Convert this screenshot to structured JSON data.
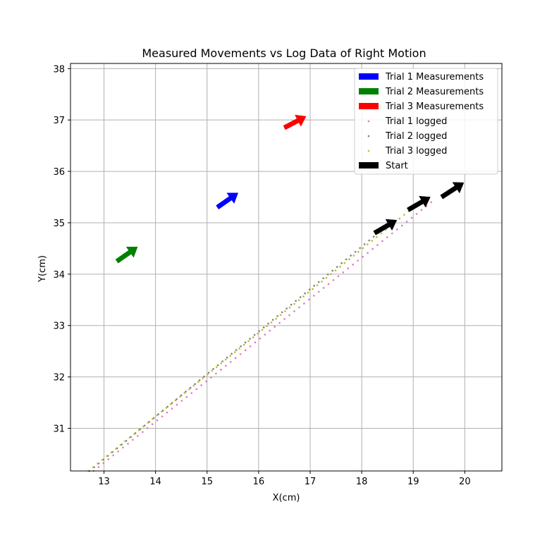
{
  "chart_data": {
    "type": "scatter",
    "title": "Measured Movements vs Log Data of Right Motion",
    "xlabel": "X(cm)",
    "ylabel": "Y(cm)",
    "xlim": [
      12.35,
      20.72
    ],
    "ylim": [
      30.17,
      38.1
    ],
    "xticks": [
      13,
      14,
      15,
      16,
      17,
      18,
      19,
      20
    ],
    "yticks": [
      31,
      32,
      33,
      34,
      35,
      36,
      37,
      38
    ],
    "grid": true,
    "legend_position": "top-right",
    "legend": [
      {
        "label": "Trial 1 Measurements",
        "kind": "patch",
        "color": "#0000ff"
      },
      {
        "label": "Trial 2 Measurements",
        "kind": "patch",
        "color": "#008000"
      },
      {
        "label": "Trial 3 Measurements",
        "kind": "patch",
        "color": "#ff0000"
      },
      {
        "label": "Trial 1 logged",
        "kind": "dot",
        "color": "#e377c2"
      },
      {
        "label": "Trial 2 logged",
        "kind": "dot",
        "color": "#7f7f7f"
      },
      {
        "label": "Trial 3 logged",
        "kind": "dot",
        "color": "#bcbd22"
      },
      {
        "label": "Start",
        "kind": "patch",
        "color": "#000000"
      }
    ],
    "arrows": [
      {
        "series": "Trial 1 Measurements",
        "color": "#0000ff",
        "x": 15.2,
        "y": 35.3,
        "dx": 0.4,
        "dy": 0.28
      },
      {
        "series": "Trial 2 Measurements",
        "color": "#008000",
        "x": 13.25,
        "y": 34.25,
        "dx": 0.4,
        "dy": 0.28
      },
      {
        "series": "Trial 3 Measurements",
        "color": "#ff0000",
        "x": 16.5,
        "y": 36.85,
        "dx": 0.42,
        "dy": 0.22
      },
      {
        "series": "Start",
        "color": "#000000",
        "x": 18.25,
        "y": 34.8,
        "dx": 0.43,
        "dy": 0.25
      },
      {
        "series": "Start",
        "color": "#000000",
        "x": 18.9,
        "y": 35.25,
        "dx": 0.43,
        "dy": 0.25
      },
      {
        "series": "Start",
        "color": "#000000",
        "x": 19.55,
        "y": 35.5,
        "dx": 0.43,
        "dy": 0.28
      }
    ],
    "series": [
      {
        "name": "Trial 1 logged",
        "color": "#e377c2",
        "x_start": 12.8,
        "y_start": 30.17,
        "x_end": 19.35,
        "y_end": 35.4,
        "count": 70
      },
      {
        "name": "Trial 2 logged",
        "color": "#7f7f7f",
        "x_start": 12.72,
        "y_start": 30.17,
        "x_end": 18.5,
        "y_end": 34.95,
        "count": 66
      },
      {
        "name": "Trial 3 logged",
        "color": "#bcbd22",
        "x_start": 12.7,
        "y_start": 30.17,
        "x_end": 19.0,
        "y_end": 35.3,
        "count": 72
      }
    ]
  }
}
